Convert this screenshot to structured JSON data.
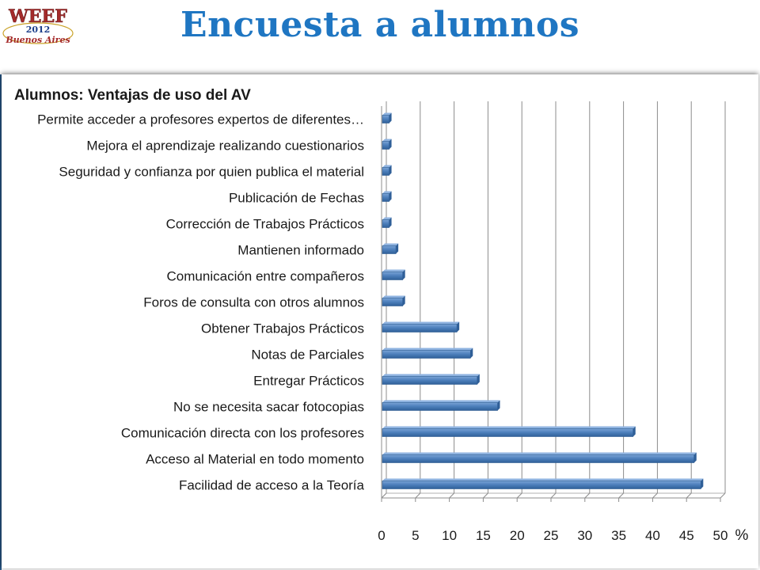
{
  "slide": {
    "title": "Encuesta a alumnos",
    "logo": {
      "line1": "WEEF",
      "line2": "2012",
      "line3": "Buenos Aires"
    }
  },
  "chart_data": {
    "type": "bar",
    "orientation": "horizontal",
    "title": "Alumnos:  Ventajas de uso del AV",
    "xlabel": "%",
    "ylabel": "",
    "xlim": [
      0,
      50
    ],
    "xticks": [
      "0",
      "5",
      "10",
      "15",
      "20",
      "25",
      "30",
      "35",
      "40",
      "45",
      "50"
    ],
    "grid": true,
    "legend": "none",
    "bar_color": "#4f81bd",
    "categories": [
      "Permite acceder a profesores expertos de diferentes…",
      "Mejora el aprendizaje realizando cuestionarios",
      "Seguridad y confianza por quien publica el material",
      "Publicación de Fechas",
      "Corrección de Trabajos Prácticos",
      "Mantienen informado",
      "Comunicación entre compañeros",
      "Foros de consulta con otros alumnos",
      "Obtener Trabajos Prácticos",
      "Notas de Parciales",
      "Entregar Prácticos",
      "No se necesita sacar fotocopias",
      "Comunicación directa con los profesores",
      "Acceso al Material en todo momento",
      "Facilidad de acceso a la Teoría"
    ],
    "values": [
      1,
      1,
      1,
      1,
      1,
      2,
      3,
      3,
      11,
      13,
      14,
      17,
      37,
      46,
      47
    ]
  }
}
